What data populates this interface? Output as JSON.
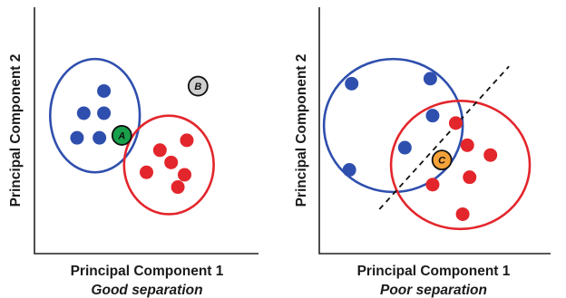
{
  "colors": {
    "blue": "#2f4fae",
    "red": "#e3262c",
    "green": "#19a04a",
    "gray": "#cfcfcf",
    "orange": "#f5a23a",
    "axis": "#222222",
    "text": "#1a1a1a"
  },
  "chart_data": [
    {
      "type": "scatter",
      "xlabel": "Principal Component 1",
      "ylabel": "Principal Component 2",
      "caption": "Good separation",
      "xlim": [
        0,
        10
      ],
      "ylim": [
        0,
        10
      ],
      "grid": false,
      "series": [
        {
          "color": "blue",
          "x": [
            3.1,
            2.2,
            3.1,
            1.9,
            2.9
          ],
          "y": [
            6.6,
            5.7,
            5.7,
            4.7,
            4.7
          ]
        },
        {
          "color": "red",
          "x": [
            6.8,
            5.6,
            6.1,
            5.0,
            6.7,
            6.4
          ],
          "y": [
            4.6,
            4.2,
            3.7,
            3.3,
            3.2,
            2.7
          ]
        }
      ],
      "ellipses": [
        {
          "color": "blue",
          "cx": 2.7,
          "cy": 5.6,
          "rx": 2.0,
          "ry": 2.3
        },
        {
          "color": "red",
          "cx": 6.0,
          "cy": 3.6,
          "rx": 2.0,
          "ry": 2.0
        }
      ],
      "annotations": [
        {
          "label": "A",
          "x": 3.9,
          "y": 4.8,
          "color": "green"
        },
        {
          "label": "B",
          "x": 7.3,
          "y": 6.8,
          "color": "gray"
        }
      ]
    },
    {
      "type": "scatter",
      "xlabel": "Principal Component 1",
      "ylabel": "Principal Component 2",
      "caption": "Poor separation",
      "xlim": [
        0,
        10
      ],
      "ylim": [
        0,
        10
      ],
      "grid": false,
      "series": [
        {
          "color": "blue",
          "x": [
            1.4,
            4.8,
            4.9,
            3.7,
            1.3
          ],
          "y": [
            6.9,
            7.1,
            5.6,
            4.3,
            3.4
          ]
        },
        {
          "color": "red",
          "x": [
            5.9,
            6.4,
            7.4,
            4.9,
            6.5,
            6.2
          ],
          "y": [
            5.3,
            4.4,
            4.0,
            2.8,
            3.1,
            1.6
          ]
        }
      ],
      "ellipses": [
        {
          "color": "blue",
          "cx": 3.2,
          "cy": 5.2,
          "rx": 3.0,
          "ry": 2.7
        },
        {
          "color": "red",
          "cx": 6.1,
          "cy": 3.6,
          "rx": 3.0,
          "ry": 2.6
        }
      ],
      "separator": {
        "x1": 2.6,
        "y1": 1.8,
        "x2": 8.2,
        "y2": 7.6
      },
      "annotations": [
        {
          "label": "C",
          "x": 5.3,
          "y": 3.8,
          "color": "orange"
        }
      ]
    }
  ]
}
